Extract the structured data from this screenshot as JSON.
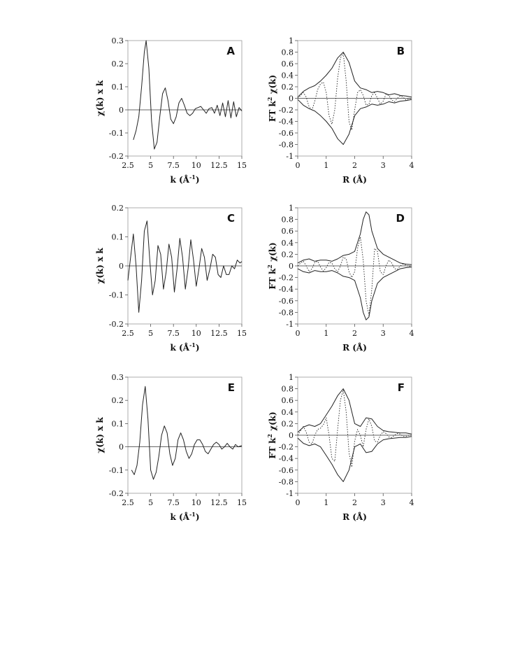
{
  "chart_data": [
    {
      "type": "line",
      "panel_label": "A",
      "xlabel": "k (Å",
      "xlabel_sup": "-1",
      "xlabel_end": ")",
      "ylabel": "χ(k) x k",
      "xlim": [
        2.5,
        15
      ],
      "ylim": [
        -0.2,
        0.3
      ],
      "xticks": [
        "2.5",
        "5",
        "7.5",
        "10",
        "12.5",
        "15"
      ],
      "yticks": [
        "-0.2",
        "-0.1",
        "0",
        "0.1",
        "0.2",
        "0.3"
      ],
      "zero_line": true,
      "series": [
        {
          "style": "solid",
          "x": [
            3.1,
            3.4,
            3.7,
            4.0,
            4.3,
            4.5,
            4.8,
            5.1,
            5.4,
            5.7,
            6.0,
            6.3,
            6.6,
            6.9,
            7.2,
            7.5,
            7.8,
            8.1,
            8.4,
            8.7,
            9.0,
            9.3,
            9.6,
            9.9,
            10.2,
            10.5,
            10.8,
            11.1,
            11.4,
            11.7,
            12.0,
            12.3,
            12.6,
            12.9,
            13.2,
            13.5,
            13.8,
            14.1,
            14.4,
            14.7,
            15.0
          ],
          "y": [
            -0.13,
            -0.09,
            -0.03,
            0.1,
            0.25,
            0.3,
            0.18,
            -0.05,
            -0.17,
            -0.14,
            -0.03,
            0.07,
            0.095,
            0.04,
            -0.04,
            -0.06,
            -0.03,
            0.03,
            0.05,
            0.02,
            -0.015,
            -0.025,
            -0.015,
            0.005,
            0.01,
            0.015,
            0.0,
            -0.015,
            0.005,
            0.01,
            -0.015,
            0.02,
            -0.025,
            0.03,
            -0.03,
            0.04,
            -0.035,
            0.035,
            -0.03,
            0.01,
            -0.005
          ]
        }
      ]
    },
    {
      "type": "line",
      "panel_label": "B",
      "xlabel": "R (Å)",
      "ylabel": "FT k",
      "ylabel_sup": "2",
      "ylabel_end": " χ(k)",
      "xlim": [
        0,
        4
      ],
      "ylim": [
        -1,
        1
      ],
      "xticks": [
        "0",
        "1",
        "2",
        "3",
        "4"
      ],
      "yticks": [
        "-1",
        "-0.8",
        "-0.6",
        "-0.4",
        "-0.2",
        "0",
        "0.2",
        "0.4",
        "0.6",
        "0.8",
        "1"
      ],
      "zero_line": true,
      "series": [
        {
          "style": "solid",
          "x": [
            0,
            0.2,
            0.4,
            0.6,
            0.8,
            1.0,
            1.2,
            1.4,
            1.6,
            1.8,
            2.0,
            2.2,
            2.4,
            2.6,
            2.8,
            3.0,
            3.2,
            3.4,
            3.6,
            3.8,
            4.0
          ],
          "y": [
            0.02,
            0.12,
            0.18,
            0.22,
            0.3,
            0.4,
            0.52,
            0.7,
            0.8,
            0.62,
            0.3,
            0.18,
            0.15,
            0.1,
            0.12,
            0.1,
            0.06,
            0.08,
            0.05,
            0.04,
            0.02
          ]
        },
        {
          "style": "solid",
          "x": [
            0,
            0.2,
            0.4,
            0.6,
            0.8,
            1.0,
            1.2,
            1.4,
            1.6,
            1.8,
            2.0,
            2.2,
            2.4,
            2.6,
            2.8,
            3.0,
            3.2,
            3.4,
            3.6,
            3.8,
            4.0
          ],
          "y": [
            -0.02,
            -0.12,
            -0.18,
            -0.22,
            -0.3,
            -0.4,
            -0.52,
            -0.7,
            -0.8,
            -0.62,
            -0.3,
            -0.18,
            -0.15,
            -0.1,
            -0.12,
            -0.1,
            -0.06,
            -0.08,
            -0.05,
            -0.04,
            -0.02
          ]
        },
        {
          "style": "dotted",
          "x": [
            0,
            0.1,
            0.2,
            0.3,
            0.4,
            0.5,
            0.6,
            0.7,
            0.8,
            0.9,
            1.0,
            1.1,
            1.2,
            1.3,
            1.4,
            1.5,
            1.6,
            1.7,
            1.8,
            1.9,
            2.0,
            2.1,
            2.2,
            2.3,
            2.4,
            2.5,
            2.6,
            2.7,
            2.8,
            2.9,
            3.0,
            3.1,
            3.2,
            3.3,
            3.4,
            3.5,
            3.6,
            3.7,
            3.8,
            3.9,
            4.0
          ],
          "y": [
            0.0,
            0.05,
            0.1,
            0.02,
            -0.15,
            -0.2,
            -0.05,
            0.15,
            0.25,
            0.28,
            0.1,
            -0.3,
            -0.45,
            -0.2,
            0.35,
            0.7,
            0.78,
            0.3,
            -0.4,
            -0.55,
            -0.2,
            0.1,
            0.15,
            0.05,
            -0.12,
            -0.1,
            0.05,
            0.1,
            0.0,
            -0.1,
            -0.05,
            0.07,
            0.05,
            -0.03,
            -0.06,
            0.0,
            0.04,
            0.02,
            -0.03,
            -0.01,
            0.0
          ]
        }
      ]
    },
    {
      "type": "line",
      "panel_label": "C",
      "xlabel": "k (Å",
      "xlabel_sup": "-1",
      "xlabel_end": ")",
      "ylabel": "χ(k) x k",
      "xlim": [
        2.5,
        15
      ],
      "ylim": [
        -0.2,
        0.2
      ],
      "xticks": [
        "2.5",
        "5",
        "7.5",
        "10",
        "12.5",
        "15"
      ],
      "yticks": [
        "-0.2",
        "-0.1",
        "0",
        "0.1",
        "0.2"
      ],
      "zero_line": true,
      "series": [
        {
          "style": "solid",
          "x": [
            2.5,
            2.8,
            3.1,
            3.4,
            3.7,
            4.0,
            4.3,
            4.6,
            4.9,
            5.2,
            5.5,
            5.8,
            6.1,
            6.4,
            6.7,
            7.0,
            7.3,
            7.6,
            7.9,
            8.2,
            8.5,
            8.8,
            9.1,
            9.4,
            9.7,
            10.0,
            10.3,
            10.6,
            10.9,
            11.2,
            11.5,
            11.8,
            12.1,
            12.4,
            12.7,
            13.0,
            13.3,
            13.6,
            13.9,
            14.2,
            14.5,
            14.8,
            15.0
          ],
          "y": [
            -0.05,
            0.03,
            0.11,
            0.0,
            -0.16,
            -0.05,
            0.12,
            0.155,
            0.02,
            -0.1,
            -0.05,
            0.07,
            0.04,
            -0.08,
            -0.02,
            0.075,
            0.03,
            -0.09,
            -0.01,
            0.095,
            0.03,
            -0.08,
            -0.01,
            0.09,
            0.02,
            -0.07,
            -0.01,
            0.06,
            0.03,
            -0.05,
            -0.01,
            0.04,
            0.03,
            -0.03,
            -0.04,
            0.0,
            -0.03,
            -0.03,
            0.0,
            -0.01,
            0.02,
            0.01,
            0.015
          ]
        }
      ]
    },
    {
      "type": "line",
      "panel_label": "D",
      "xlabel": "R (Å)",
      "ylabel": "FT k",
      "ylabel_sup": "2",
      "ylabel_end": " χ(k)",
      "xlim": [
        0,
        4
      ],
      "ylim": [
        -1,
        1
      ],
      "xticks": [
        "0",
        "1",
        "2",
        "3",
        "4"
      ],
      "yticks": [
        "-1",
        "-0.8",
        "-0.6",
        "-0.4",
        "-0.2",
        "0",
        "0.2",
        "0.4",
        "0.6",
        "0.8",
        "1"
      ],
      "zero_line": true,
      "series": [
        {
          "style": "solid",
          "x": [
            0,
            0.2,
            0.4,
            0.6,
            0.8,
            1.0,
            1.2,
            1.4,
            1.6,
            1.8,
            2.0,
            2.2,
            2.3,
            2.4,
            2.5,
            2.6,
            2.8,
            3.0,
            3.2,
            3.4,
            3.6,
            3.8,
            4.0
          ],
          "y": [
            0.05,
            0.1,
            0.12,
            0.08,
            0.1,
            0.1,
            0.08,
            0.12,
            0.18,
            0.2,
            0.25,
            0.55,
            0.8,
            0.93,
            0.88,
            0.6,
            0.3,
            0.2,
            0.15,
            0.1,
            0.05,
            0.03,
            0.02
          ]
        },
        {
          "style": "solid",
          "x": [
            0,
            0.2,
            0.4,
            0.6,
            0.8,
            1.0,
            1.2,
            1.4,
            1.6,
            1.8,
            2.0,
            2.2,
            2.3,
            2.4,
            2.5,
            2.6,
            2.8,
            3.0,
            3.2,
            3.4,
            3.6,
            3.8,
            4.0
          ],
          "y": [
            -0.05,
            -0.1,
            -0.12,
            -0.08,
            -0.1,
            -0.1,
            -0.08,
            -0.12,
            -0.18,
            -0.2,
            -0.25,
            -0.55,
            -0.8,
            -0.93,
            -0.88,
            -0.6,
            -0.3,
            -0.2,
            -0.15,
            -0.1,
            -0.05,
            -0.03,
            -0.02
          ]
        },
        {
          "style": "dotted",
          "x": [
            0,
            0.1,
            0.2,
            0.3,
            0.4,
            0.5,
            0.6,
            0.7,
            0.8,
            0.9,
            1.0,
            1.1,
            1.2,
            1.3,
            1.4,
            1.5,
            1.6,
            1.7,
            1.8,
            1.9,
            2.0,
            2.1,
            2.2,
            2.3,
            2.4,
            2.5,
            2.6,
            2.7,
            2.8,
            2.9,
            3.0,
            3.1,
            3.2,
            3.3,
            3.4,
            3.5,
            3.6,
            3.7,
            3.8,
            3.9,
            4.0
          ],
          "y": [
            0.0,
            0.05,
            0.08,
            0.0,
            -0.1,
            -0.05,
            0.06,
            0.08,
            -0.02,
            -0.09,
            -0.03,
            0.06,
            0.05,
            -0.05,
            -0.1,
            0.0,
            0.15,
            0.12,
            -0.1,
            -0.2,
            -0.1,
            0.3,
            0.5,
            0.1,
            -0.6,
            -0.85,
            -0.4,
            0.3,
            0.25,
            -0.1,
            -0.15,
            0.0,
            0.1,
            0.05,
            -0.05,
            -0.06,
            0.0,
            0.03,
            0.01,
            -0.01,
            0.0
          ]
        }
      ]
    },
    {
      "type": "line",
      "panel_label": "E",
      "xlabel": "k (Å",
      "xlabel_sup": "-1",
      "xlabel_end": ")",
      "ylabel": "χ(k) x k",
      "xlim": [
        2.5,
        15
      ],
      "ylim": [
        -0.2,
        0.3
      ],
      "xticks": [
        "2.5",
        "5",
        "7.5",
        "10",
        "12.5",
        "15"
      ],
      "yticks": [
        "-0.2",
        "-0.1",
        "0",
        "0.1",
        "0.2",
        "0.3"
      ],
      "zero_line": true,
      "series": [
        {
          "style": "solid",
          "x": [
            2.9,
            3.2,
            3.5,
            3.8,
            4.1,
            4.4,
            4.7,
            5.0,
            5.3,
            5.6,
            5.9,
            6.2,
            6.5,
            6.8,
            7.1,
            7.4,
            7.7,
            8.0,
            8.3,
            8.6,
            8.9,
            9.2,
            9.5,
            9.8,
            10.1,
            10.4,
            10.7,
            11.0,
            11.3,
            11.6,
            11.9,
            12.2,
            12.5,
            12.8,
            13.1,
            13.4,
            13.7,
            14.0,
            14.3,
            14.6,
            15.0
          ],
          "y": [
            -0.1,
            -0.12,
            -0.08,
            0.02,
            0.18,
            0.26,
            0.12,
            -0.1,
            -0.14,
            -0.11,
            -0.04,
            0.05,
            0.09,
            0.06,
            -0.03,
            -0.08,
            -0.05,
            0.03,
            0.06,
            0.03,
            -0.02,
            -0.05,
            -0.03,
            0.01,
            0.03,
            0.03,
            0.01,
            -0.02,
            -0.03,
            -0.01,
            0.01,
            0.02,
            0.01,
            -0.01,
            0.0,
            0.015,
            0.0,
            -0.01,
            0.01,
            0.0,
            0.005
          ]
        }
      ]
    },
    {
      "type": "line",
      "panel_label": "F",
      "xlabel": "R (Å)",
      "ylabel": "FT k",
      "ylabel_sup": "2",
      "ylabel_end": " χ(k)",
      "xlim": [
        0,
        4
      ],
      "ylim": [
        -1,
        1
      ],
      "xticks": [
        "0",
        "1",
        "2",
        "3",
        "4"
      ],
      "yticks": [
        "-1",
        "-0.8",
        "-0.6",
        "-0.4",
        "-0.2",
        "0",
        "0.2",
        "0.4",
        "0.6",
        "0.8",
        "1"
      ],
      "zero_line": true,
      "series": [
        {
          "style": "solid",
          "x": [
            0,
            0.2,
            0.4,
            0.6,
            0.8,
            1.0,
            1.2,
            1.4,
            1.6,
            1.8,
            2.0,
            2.2,
            2.4,
            2.6,
            2.8,
            3.0,
            3.2,
            3.4,
            3.6,
            3.8,
            4.0
          ],
          "y": [
            0.05,
            0.14,
            0.18,
            0.15,
            0.2,
            0.35,
            0.5,
            0.68,
            0.8,
            0.6,
            0.2,
            0.15,
            0.3,
            0.28,
            0.15,
            0.08,
            0.06,
            0.05,
            0.04,
            0.04,
            0.02
          ]
        },
        {
          "style": "solid",
          "x": [
            0,
            0.2,
            0.4,
            0.6,
            0.8,
            1.0,
            1.2,
            1.4,
            1.6,
            1.8,
            2.0,
            2.2,
            2.4,
            2.6,
            2.8,
            3.0,
            3.2,
            3.4,
            3.6,
            3.8,
            4.0
          ],
          "y": [
            -0.05,
            -0.14,
            -0.18,
            -0.15,
            -0.2,
            -0.35,
            -0.5,
            -0.68,
            -0.8,
            -0.6,
            -0.2,
            -0.15,
            -0.3,
            -0.28,
            -0.15,
            -0.08,
            -0.06,
            -0.05,
            -0.04,
            -0.04,
            -0.02
          ]
        },
        {
          "style": "dotted",
          "x": [
            0,
            0.1,
            0.2,
            0.3,
            0.4,
            0.5,
            0.6,
            0.7,
            0.8,
            0.9,
            1.0,
            1.1,
            1.2,
            1.3,
            1.4,
            1.5,
            1.6,
            1.7,
            1.8,
            1.9,
            2.0,
            2.1,
            2.2,
            2.3,
            2.4,
            2.5,
            2.6,
            2.7,
            2.8,
            2.9,
            3.0,
            3.1,
            3.2,
            3.3,
            3.4,
            3.5,
            3.6,
            3.7,
            3.8,
            3.9,
            4.0
          ],
          "y": [
            0.0,
            0.08,
            0.15,
            0.05,
            -0.12,
            -0.15,
            0.0,
            0.1,
            0.12,
            0.18,
            0.3,
            0.0,
            -0.4,
            -0.45,
            0.1,
            0.6,
            0.78,
            0.4,
            -0.3,
            -0.55,
            -0.1,
            0.1,
            0.0,
            -0.2,
            0.1,
            0.28,
            0.15,
            -0.1,
            -0.12,
            0.0,
            0.06,
            0.03,
            -0.03,
            -0.04,
            0.0,
            0.03,
            0.02,
            -0.02,
            -0.02,
            0.0,
            0.0
          ]
        }
      ]
    }
  ]
}
